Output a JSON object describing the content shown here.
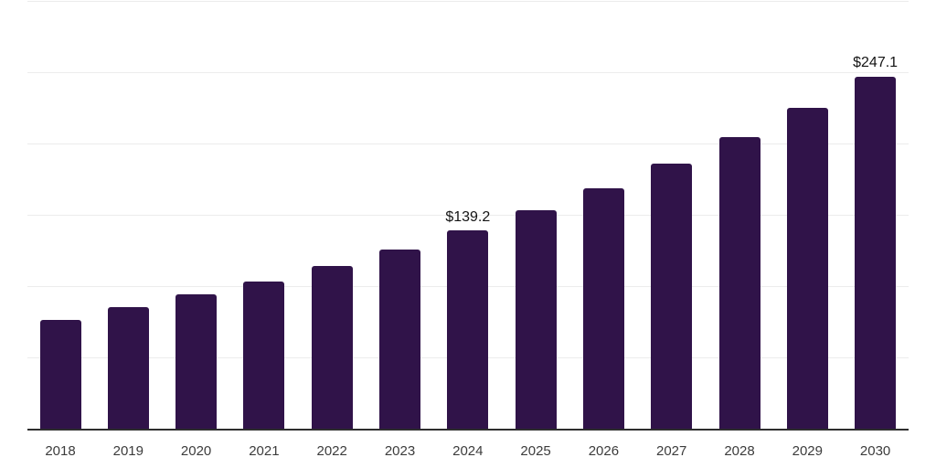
{
  "chart_data": {
    "type": "bar",
    "title": "",
    "categories": [
      "2018",
      "2019",
      "2020",
      "2021",
      "2022",
      "2023",
      "2024",
      "2025",
      "2026",
      "2027",
      "2028",
      "2029",
      "2030"
    ],
    "values": [
      76.2,
      85.4,
      94.4,
      103.4,
      114.0,
      125.8,
      139.2,
      153.1,
      168.8,
      186.4,
      204.4,
      224.9,
      247.1
    ],
    "data_labels": [
      {
        "category": "2024",
        "text": "$139.2"
      },
      {
        "category": "2030",
        "text": "$247.1"
      }
    ],
    "value_prefix": "$",
    "xlabel": "",
    "ylabel": "",
    "ylim": [
      0,
      300
    ],
    "y_gridline_interval": 50,
    "grid": "horizontal",
    "legend": "none",
    "colors": {
      "bar": "#301349",
      "grid_line": "#ececec",
      "axis_line": "#2e2e2e",
      "tick_label": "#3c3c3c",
      "data_label": "#141414",
      "background": "#ffffff"
    }
  }
}
